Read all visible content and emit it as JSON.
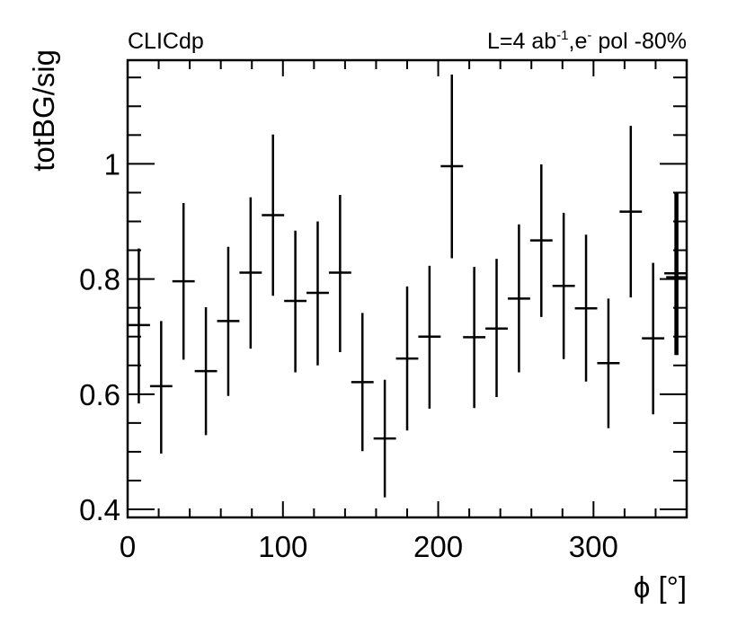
{
  "chart_data": {
    "type": "scatter",
    "style": "histogram points with error bars",
    "title_left": "CLICdp",
    "title_right": {
      "base": "L=4 ab",
      "sup1": "-1",
      "mid": ",e",
      "sup2": "-",
      "tail": " pol -80%"
    },
    "xlabel": "ϕ [°]",
    "ylabel": "totBG/sig",
    "xlim": [
      0,
      360
    ],
    "ylim": [
      0.386,
      1.18
    ],
    "xticks": [
      0,
      100,
      200,
      300
    ],
    "xtick_labels": [
      "0",
      "100",
      "200",
      "300"
    ],
    "yticks": [
      0.4,
      0.6,
      0.8,
      1.0
    ],
    "ytick_labels": [
      "0.4",
      "0.6",
      "0.8",
      "1"
    ],
    "bin_width": 14.4,
    "points": [
      {
        "x": 7.2,
        "y": 0.72,
        "lo": 0.584,
        "hi": 0.853
      },
      {
        "x": 21.6,
        "y": 0.614,
        "lo": 0.497,
        "hi": 0.727
      },
      {
        "x": 36.0,
        "y": 0.796,
        "lo": 0.66,
        "hi": 0.932
      },
      {
        "x": 50.4,
        "y": 0.64,
        "lo": 0.529,
        "hi": 0.751
      },
      {
        "x": 64.8,
        "y": 0.727,
        "lo": 0.597,
        "hi": 0.856
      },
      {
        "x": 79.2,
        "y": 0.811,
        "lo": 0.679,
        "hi": 0.942
      },
      {
        "x": 93.6,
        "y": 0.911,
        "lo": 0.771,
        "hi": 1.051
      },
      {
        "x": 108.0,
        "y": 0.762,
        "lo": 0.638,
        "hi": 0.884
      },
      {
        "x": 122.4,
        "y": 0.776,
        "lo": 0.65,
        "hi": 0.9
      },
      {
        "x": 136.8,
        "y": 0.811,
        "lo": 0.673,
        "hi": 0.946
      },
      {
        "x": 151.2,
        "y": 0.621,
        "lo": 0.501,
        "hi": 0.741
      },
      {
        "x": 165.6,
        "y": 0.523,
        "lo": 0.421,
        "hi": 0.625
      },
      {
        "x": 180.0,
        "y": 0.662,
        "lo": 0.537,
        "hi": 0.787
      },
      {
        "x": 194.4,
        "y": 0.7,
        "lo": 0.575,
        "hi": 0.823
      },
      {
        "x": 208.8,
        "y": 0.996,
        "lo": 0.836,
        "hi": 1.155
      },
      {
        "x": 223.2,
        "y": 0.699,
        "lo": 0.576,
        "hi": 0.821
      },
      {
        "x": 237.6,
        "y": 0.714,
        "lo": 0.595,
        "hi": 0.835
      },
      {
        "x": 252.0,
        "y": 0.766,
        "lo": 0.638,
        "hi": 0.895
      },
      {
        "x": 266.4,
        "y": 0.867,
        "lo": 0.734,
        "hi": 0.999
      },
      {
        "x": 280.8,
        "y": 0.788,
        "lo": 0.661,
        "hi": 0.915
      },
      {
        "x": 295.2,
        "y": 0.749,
        "lo": 0.622,
        "hi": 0.877
      },
      {
        "x": 309.6,
        "y": 0.654,
        "lo": 0.541,
        "hi": 0.766
      },
      {
        "x": 324.0,
        "y": 0.917,
        "lo": 0.768,
        "hi": 1.066
      },
      {
        "x": 338.4,
        "y": 0.697,
        "lo": 0.565,
        "hi": 0.828
      },
      {
        "x": 352.8,
        "y": 0.81,
        "lo": 0.668,
        "hi": 0.951
      },
      {
        "x": 354.0,
        "y": 0.803,
        "lo": 0.668,
        "hi": 0.951
      }
    ],
    "grid": false,
    "color": "#000000"
  }
}
